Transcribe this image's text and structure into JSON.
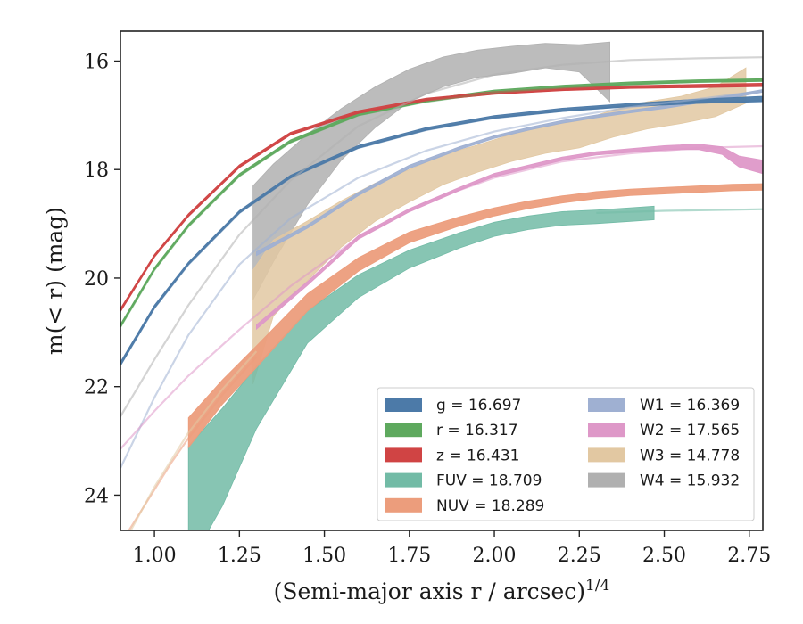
{
  "chart_data": {
    "type": "line",
    "xlabel": "(Semi-major axis r / arcsec)",
    "xlabel_sup": "1/4",
    "ylabel": "m(< r) (mag)",
    "xlim": [
      0.9,
      2.79
    ],
    "ylim": [
      24.65,
      15.45
    ],
    "y_inverted": true,
    "grid": false,
    "legend_placement": "lower-right",
    "xticks": [
      {
        "value": 1.0,
        "label": "1.00"
      },
      {
        "value": 1.25,
        "label": "1.25"
      },
      {
        "value": 1.5,
        "label": "1.50"
      },
      {
        "value": 1.75,
        "label": "1.75"
      },
      {
        "value": 2.0,
        "label": "2.00"
      },
      {
        "value": 2.25,
        "label": "2.25"
      },
      {
        "value": 2.5,
        "label": "2.50"
      },
      {
        "value": 2.75,
        "label": "2.75"
      }
    ],
    "yticks": [
      {
        "value": 16,
        "label": "16"
      },
      {
        "value": 18,
        "label": "18"
      },
      {
        "value": 20,
        "label": "20"
      },
      {
        "value": 22,
        "label": "22"
      },
      {
        "value": 24,
        "label": "24"
      }
    ],
    "series": [
      {
        "name": "g",
        "label": "g = 16.697",
        "color": "#4c7aa8",
        "model": {
          "x": [
            0.9,
            1.0,
            1.1,
            1.25,
            1.4,
            1.6,
            1.8,
            2.0,
            2.2,
            2.4,
            2.6,
            2.79
          ],
          "y": [
            21.6,
            20.55,
            19.75,
            18.8,
            18.15,
            17.6,
            17.27,
            17.05,
            16.92,
            16.83,
            16.77,
            16.73
          ]
        },
        "band": {
          "x": [
            0.9,
            1.0,
            1.1,
            1.25,
            1.4,
            1.6,
            1.8,
            2.0,
            2.2,
            2.4,
            2.6,
            2.79
          ],
          "y": [
            21.58,
            20.53,
            19.73,
            18.78,
            18.13,
            17.58,
            17.25,
            17.03,
            16.9,
            16.81,
            16.74,
            16.7
          ],
          "w": [
            0.07,
            0.06,
            0.05,
            0.05,
            0.05,
            0.05,
            0.05,
            0.05,
            0.06,
            0.06,
            0.08,
            0.1
          ]
        }
      },
      {
        "name": "r",
        "label": "r = 16.317",
        "color": "#5ea95e",
        "model": {
          "x": [
            0.9,
            1.0,
            1.1,
            1.25,
            1.4,
            1.6,
            1.8,
            2.0,
            2.2,
            2.4,
            2.6,
            2.79
          ],
          "y": [
            20.9,
            19.85,
            19.05,
            18.12,
            17.5,
            17.0,
            16.75,
            16.58,
            16.49,
            16.43,
            16.38,
            16.36
          ]
        },
        "band": {
          "x": [
            0.9,
            1.0,
            1.1,
            1.25,
            1.4,
            1.6,
            1.8,
            2.0,
            2.2,
            2.4,
            2.6,
            2.79
          ],
          "y": [
            20.88,
            19.83,
            19.03,
            18.1,
            17.48,
            16.98,
            16.73,
            16.56,
            16.47,
            16.41,
            16.37,
            16.35
          ],
          "w": [
            0.06,
            0.05,
            0.05,
            0.05,
            0.05,
            0.05,
            0.05,
            0.05,
            0.05,
            0.05,
            0.05,
            0.05
          ]
        }
      },
      {
        "name": "z",
        "label": "z = 16.431",
        "color": "#d04444",
        "model": {
          "x": [
            0.9,
            1.0,
            1.1,
            1.25,
            1.4,
            1.6,
            1.8,
            2.0,
            2.2,
            2.4,
            2.6,
            2.79
          ],
          "y": [
            20.6,
            19.6,
            18.85,
            17.95,
            17.35,
            16.95,
            16.72,
            16.6,
            16.53,
            16.49,
            16.47,
            16.45
          ]
        },
        "band": {
          "x": [
            0.9,
            1.0,
            1.1,
            1.25,
            1.4,
            1.6,
            1.8,
            2.0,
            2.2,
            2.4,
            2.6,
            2.79
          ],
          "y": [
            20.59,
            19.59,
            18.84,
            17.94,
            17.34,
            16.94,
            16.71,
            16.59,
            16.52,
            16.48,
            16.46,
            16.44
          ],
          "w": [
            0.06,
            0.05,
            0.05,
            0.05,
            0.05,
            0.05,
            0.05,
            0.05,
            0.05,
            0.05,
            0.06,
            0.06
          ]
        }
      },
      {
        "name": "FUV",
        "label": "FUV = 18.709",
        "color": "#72bba6",
        "model": {
          "x": [
            2.3,
            2.4,
            2.5,
            2.6,
            2.7,
            2.79
          ],
          "y": [
            18.8,
            18.78,
            18.76,
            18.75,
            18.74,
            18.73
          ]
        },
        "band": {
          "x": [
            1.1,
            1.2,
            1.3,
            1.45,
            1.6,
            1.75,
            1.9,
            2.0,
            2.1,
            2.2,
            2.3,
            2.4,
            2.47
          ],
          "y": [
            24.2,
            23.3,
            22.2,
            20.9,
            20.15,
            19.65,
            19.3,
            19.1,
            18.98,
            18.9,
            18.87,
            18.83,
            18.8
          ],
          "w": [
            2.2,
            1.8,
            1.15,
            0.6,
            0.42,
            0.33,
            0.28,
            0.26,
            0.25,
            0.25,
            0.25,
            0.25,
            0.25
          ]
        }
      },
      {
        "name": "NUV",
        "label": "NUV = 18.289",
        "color": "#ec9d7c",
        "model": {
          "x": [
            0.9,
            0.95,
            1.0,
            1.05,
            1.1,
            1.2,
            1.3
          ],
          "y": [
            24.9,
            24.4,
            23.9,
            23.4,
            22.95,
            22.15,
            21.45
          ]
        },
        "band": {
          "x": [
            1.1,
            1.2,
            1.3,
            1.45,
            1.6,
            1.75,
            1.9,
            2.0,
            2.1,
            2.2,
            2.3,
            2.4,
            2.5,
            2.6,
            2.7,
            2.79
          ],
          "y": [
            22.85,
            22.1,
            21.45,
            20.45,
            19.75,
            19.25,
            18.95,
            18.78,
            18.65,
            18.55,
            18.47,
            18.42,
            18.39,
            18.36,
            18.33,
            18.32
          ],
          "w": [
            0.55,
            0.45,
            0.4,
            0.32,
            0.25,
            0.2,
            0.17,
            0.15,
            0.14,
            0.13,
            0.13,
            0.12,
            0.12,
            0.12,
            0.12,
            0.12
          ]
        }
      },
      {
        "name": "W1",
        "label": "W1 = 16.369",
        "color": "#9fb0d2",
        "model": {
          "x": [
            0.9,
            1.0,
            1.1,
            1.25,
            1.4,
            1.6,
            1.8,
            2.0,
            2.2,
            2.4,
            2.6,
            2.79
          ],
          "y": [
            23.5,
            22.2,
            21.05,
            19.75,
            18.9,
            18.15,
            17.65,
            17.3,
            17.05,
            16.85,
            16.7,
            16.55
          ]
        },
        "band": {
          "x": [
            1.3,
            1.45,
            1.6,
            1.75,
            1.9,
            2.0,
            2.1,
            2.2,
            2.3,
            2.4,
            2.5,
            2.6,
            2.7,
            2.79
          ],
          "y": [
            19.55,
            19.05,
            18.45,
            17.95,
            17.6,
            17.4,
            17.25,
            17.12,
            17.02,
            16.93,
            16.85,
            16.75,
            16.65,
            16.55
          ],
          "w": [
            0.07,
            0.06,
            0.06,
            0.06,
            0.05,
            0.05,
            0.05,
            0.05,
            0.05,
            0.05,
            0.05,
            0.05,
            0.05,
            0.05
          ]
        }
      },
      {
        "name": "W2",
        "label": "W2 = 17.565",
        "color": "#de98c8",
        "model": {
          "x": [
            0.9,
            1.0,
            1.1,
            1.25,
            1.4,
            1.6,
            1.8,
            2.0,
            2.2,
            2.4,
            2.6,
            2.79
          ],
          "y": [
            23.15,
            22.45,
            21.8,
            20.95,
            20.15,
            19.25,
            18.6,
            18.15,
            17.85,
            17.7,
            17.6,
            17.57
          ]
        },
        "band": {
          "x": [
            1.3,
            1.45,
            1.6,
            1.75,
            1.9,
            2.0,
            2.1,
            2.2,
            2.3,
            2.4,
            2.5,
            2.6,
            2.67,
            2.72,
            2.79
          ],
          "y": [
            20.9,
            20.1,
            19.25,
            18.75,
            18.35,
            18.1,
            17.95,
            17.8,
            17.7,
            17.65,
            17.6,
            17.58,
            17.65,
            17.85,
            17.95
          ],
          "w": [
            0.08,
            0.07,
            0.07,
            0.06,
            0.06,
            0.06,
            0.06,
            0.06,
            0.06,
            0.07,
            0.08,
            0.1,
            0.14,
            0.2,
            0.25
          ]
        }
      },
      {
        "name": "W3",
        "label": "W3 = 14.778",
        "color": "#e2c8a2",
        "model": {
          "x": [
            0.9,
            1.0,
            1.1,
            1.2,
            1.3
          ],
          "y": [
            25.0,
            23.85,
            22.85,
            22.05,
            21.35
          ]
        },
        "band": {
          "x": [
            1.29,
            1.35,
            1.45,
            1.55,
            1.65,
            1.75,
            1.85,
            1.95,
            2.05,
            2.15,
            2.25,
            2.35,
            2.45,
            2.55,
            2.65,
            2.74
          ],
          "y": [
            20.9,
            20.0,
            19.5,
            19.0,
            18.6,
            18.3,
            18.0,
            17.8,
            17.6,
            17.45,
            17.35,
            17.15,
            17.0,
            16.9,
            16.75,
            16.45
          ],
          "w": [
            2.1,
            1.4,
            1.1,
            0.85,
            0.7,
            0.6,
            0.55,
            0.5,
            0.5,
            0.5,
            0.5,
            0.5,
            0.5,
            0.5,
            0.55,
            0.65
          ]
        }
      },
      {
        "name": "W4",
        "label": "W4 = 15.932",
        "color": "#b0b0b0",
        "model": {
          "x": [
            0.9,
            1.0,
            1.1,
            1.25,
            1.4,
            1.6,
            1.8,
            2.0,
            2.2,
            2.4,
            2.6,
            2.79
          ],
          "y": [
            22.55,
            21.5,
            20.5,
            19.2,
            18.2,
            17.2,
            16.6,
            16.25,
            16.07,
            15.98,
            15.95,
            15.93
          ]
        },
        "band": {
          "x": [
            1.29,
            1.35,
            1.45,
            1.55,
            1.65,
            1.75,
            1.85,
            1.95,
            2.05,
            2.15,
            2.25,
            2.34
          ],
          "y": [
            19.35,
            18.8,
            18.0,
            17.35,
            16.85,
            16.45,
            16.2,
            16.05,
            15.98,
            15.9,
            15.95,
            16.2
          ],
          "w": [
            2.1,
            1.8,
            1.3,
            0.95,
            0.75,
            0.6,
            0.55,
            0.5,
            0.5,
            0.45,
            0.5,
            1.1
          ]
        }
      }
    ]
  }
}
